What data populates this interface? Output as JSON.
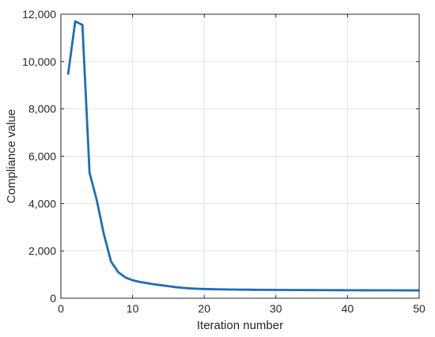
{
  "chart_data": {
    "type": "line",
    "title": "",
    "xlabel": "Iteration number",
    "ylabel": "Compliance value",
    "xlim": [
      0,
      50
    ],
    "ylim": [
      0,
      12000
    ],
    "xticks": [
      0,
      10,
      20,
      30,
      40,
      50
    ],
    "xtick_labels": [
      "0",
      "10",
      "20",
      "30",
      "40",
      "50"
    ],
    "yticks": [
      0,
      2000,
      4000,
      6000,
      8000,
      10000,
      12000
    ],
    "ytick_labels": [
      "0",
      "2,000",
      "4,000",
      "6,000",
      "8,000",
      "10,000",
      "12,000"
    ],
    "grid": true,
    "series": [
      {
        "color": "#1f6db3",
        "x": [
          1,
          2,
          3,
          4,
          5,
          6,
          7,
          8,
          9,
          10,
          11,
          12,
          13,
          14,
          15,
          16,
          17,
          18,
          19,
          20,
          21,
          22,
          23,
          24,
          25,
          26,
          27,
          28,
          29,
          30,
          31,
          32,
          33,
          34,
          35,
          36,
          37,
          38,
          39,
          40,
          41,
          42,
          43,
          44,
          45,
          46,
          47,
          48,
          49,
          50
        ],
        "y": [
          9450,
          11700,
          11550,
          5300,
          4150,
          2700,
          1550,
          1100,
          880,
          760,
          690,
          640,
          590,
          550,
          510,
          470,
          440,
          415,
          400,
          390,
          382,
          376,
          371,
          367,
          364,
          361,
          358,
          356,
          354,
          352,
          350,
          348,
          347,
          345,
          344,
          343,
          342,
          341,
          340,
          339,
          338,
          337,
          336,
          335,
          335,
          334,
          334,
          333,
          333,
          332
        ]
      }
    ]
  }
}
